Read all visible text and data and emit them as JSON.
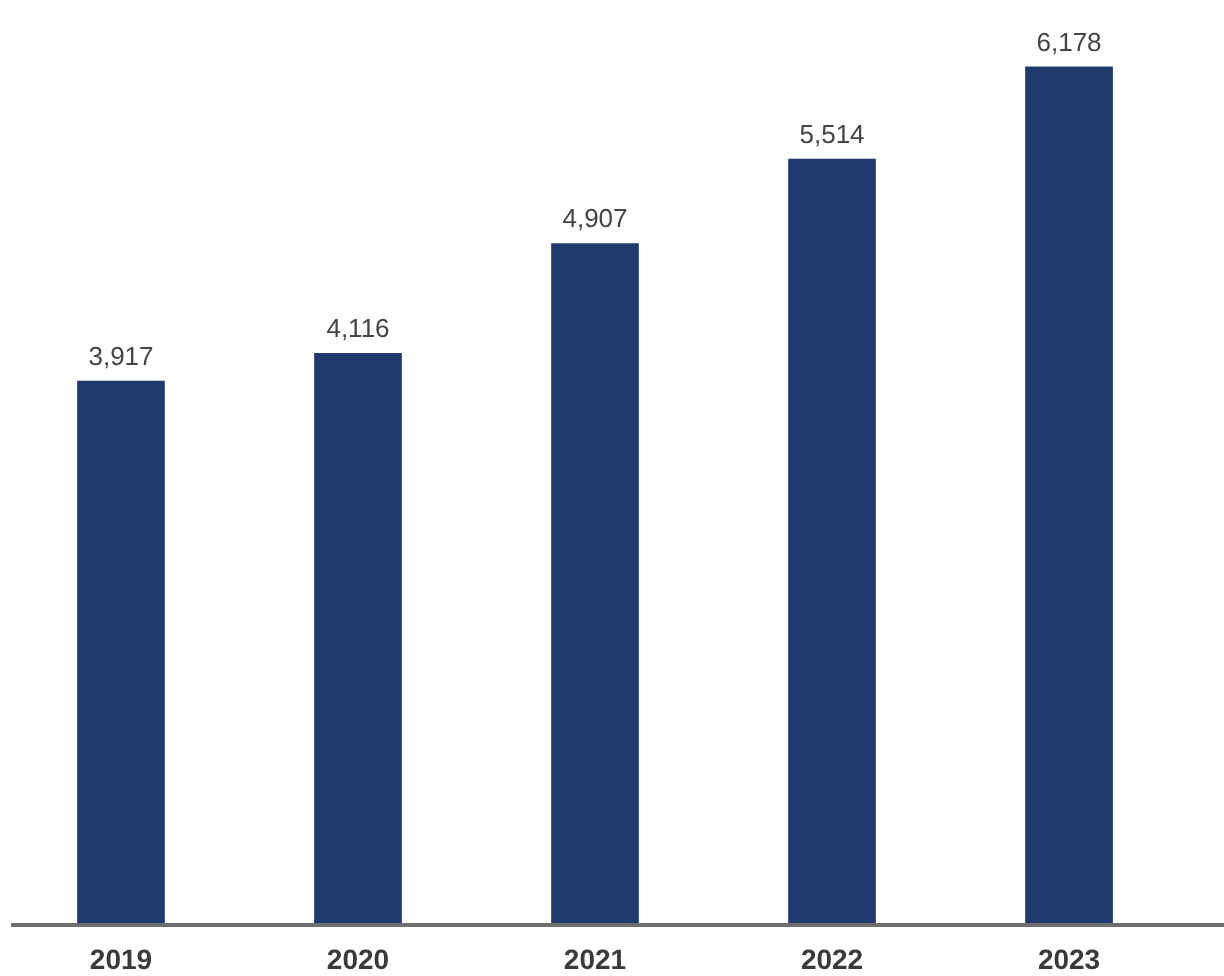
{
  "chart_data": {
    "type": "bar",
    "categories": [
      "2019",
      "2020",
      "2021",
      "2022",
      "2023"
    ],
    "values": [
      3917,
      4116,
      4907,
      5514,
      6178
    ],
    "value_labels": [
      "3,917",
      "4,116",
      "4,907",
      "5,514",
      "6,178"
    ],
    "color": "#203a6e",
    "tick_labels": "x",
    "grid": false
  }
}
